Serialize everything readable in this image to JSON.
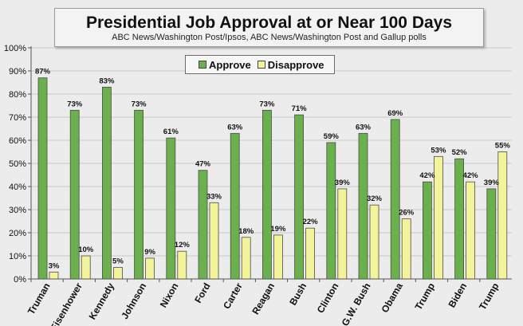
{
  "chart_data": {
    "type": "bar",
    "title": "Presidential Job Approval at or Near 100 Days",
    "subtitle": "ABC News/Washington Post/Ipsos, ABC News/Washington Post  and Gallup polls",
    "categories": [
      "Truman",
      "Eisenhower",
      "Kennedy",
      "Johnson",
      "Nixon",
      "Ford",
      "Carter",
      "Reagan",
      "Bush",
      "Clinton",
      "G.W. Bush",
      "Obama",
      "Trump",
      "Biden",
      "Trump"
    ],
    "series": [
      {
        "name": "Approve",
        "color": "#6ab04c",
        "values": [
          87,
          73,
          83,
          73,
          61,
          47,
          63,
          73,
          71,
          59,
          63,
          69,
          42,
          52,
          39
        ]
      },
      {
        "name": "Disapprove",
        "color": "#f3f39a",
        "values": [
          3,
          10,
          5,
          9,
          12,
          33,
          18,
          19,
          22,
          39,
          32,
          26,
          53,
          42,
          55
        ]
      }
    ],
    "yticks": [
      "0%",
      "10%",
      "20%",
      "30%",
      "40%",
      "50%",
      "60%",
      "70%",
      "80%",
      "90%",
      "100%"
    ],
    "ylim": [
      0,
      100
    ],
    "value_suffix": "%",
    "legend_position": "top-center",
    "grid": true
  },
  "colors": {
    "approve": "#6ab04c",
    "disapprove": "#f3f39a",
    "gridline": "#c8c8c8",
    "axis": "#555555"
  }
}
